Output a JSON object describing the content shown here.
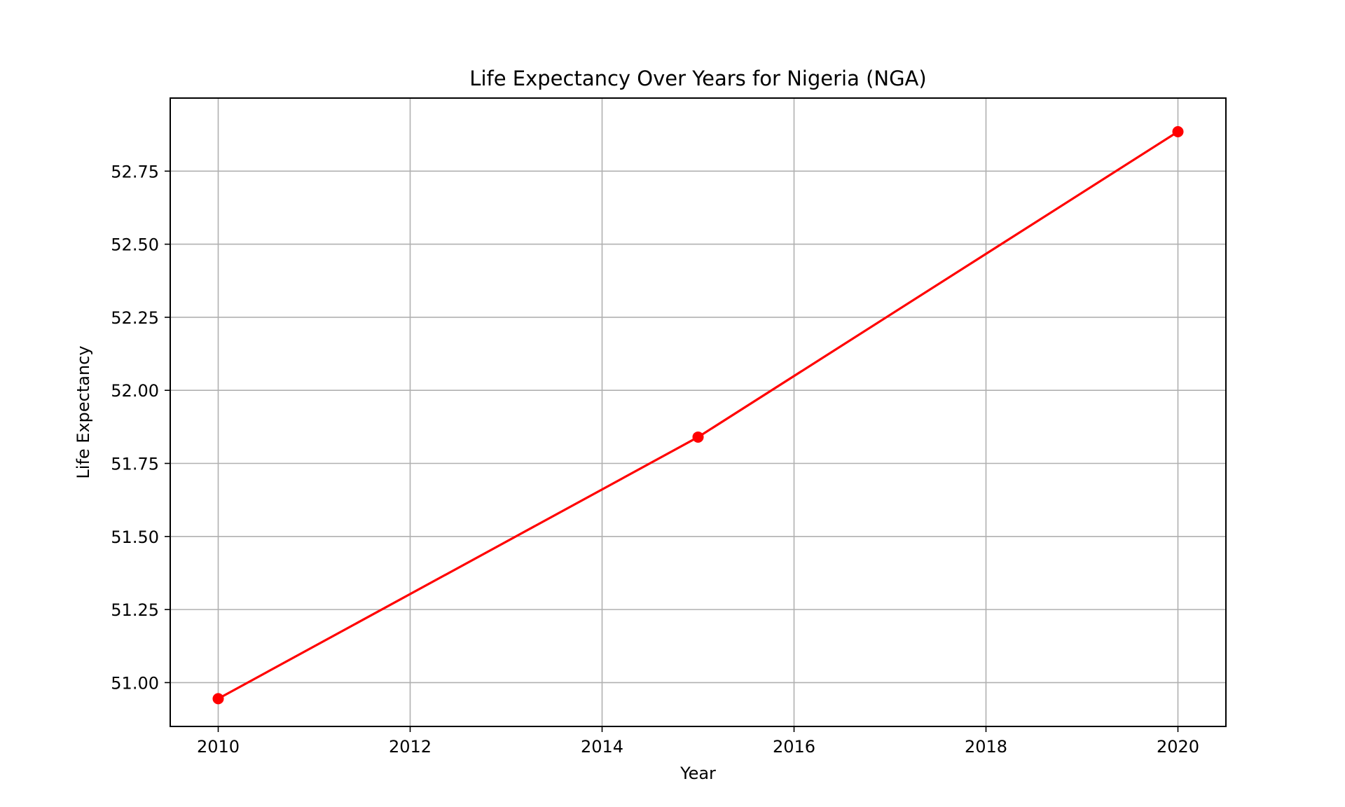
{
  "chart_data": {
    "type": "line",
    "title": "Life Expectancy Over Years for Nigeria (NGA)",
    "xlabel": "Year",
    "ylabel": "Life Expectancy",
    "x": [
      2010,
      2015,
      2020
    ],
    "series": [
      {
        "values": [
          50.945,
          51.84,
          52.885
        ],
        "color": "#ff0000",
        "marker": "circle"
      }
    ],
    "xlim": [
      2009.5,
      2020.5
    ],
    "ylim": [
      50.85,
      53.0
    ],
    "xticks": [
      2010,
      2012,
      2014,
      2016,
      2018,
      2020
    ],
    "xtick_labels": [
      "2010",
      "2012",
      "2014",
      "2016",
      "2018",
      "2020"
    ],
    "yticks": [
      51.0,
      51.25,
      51.5,
      51.75,
      52.0,
      52.25,
      52.5,
      52.75
    ],
    "ytick_labels": [
      "51.00",
      "51.25",
      "51.50",
      "51.75",
      "52.00",
      "52.25",
      "52.50",
      "52.75"
    ],
    "grid": true
  }
}
